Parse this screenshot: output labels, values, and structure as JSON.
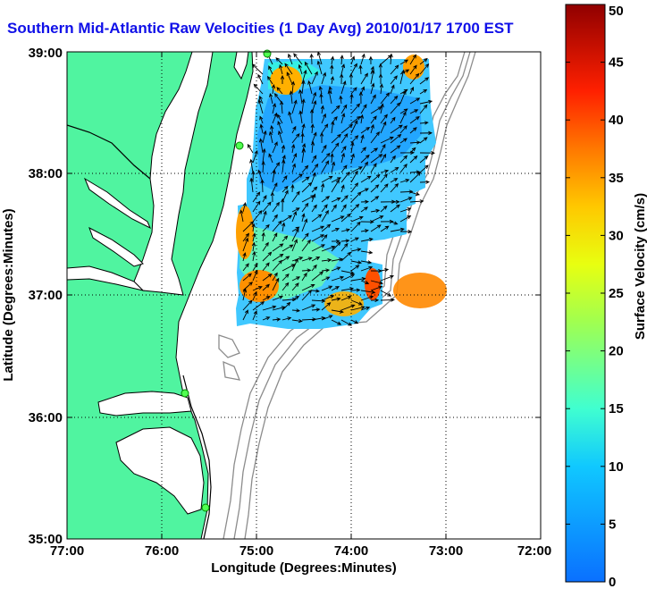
{
  "title": "Southern Mid-Atlantic Raw Velocities (1 Day Avg) 2010/01/17 1700 EST",
  "chart_data": {
    "type": "heatmap",
    "title": "Southern Mid-Atlantic Raw Velocities (1 Day Avg) 2010/01/17 1700 EST",
    "xlabel": "Longitude (Degrees:Minutes)",
    "ylabel": "Latitude (Degrees:Minutes)",
    "x_ticks": [
      "77:00",
      "76:00",
      "75:00",
      "74:00",
      "73:00",
      "72:00"
    ],
    "y_ticks": [
      "39:00",
      "38:00",
      "37:00",
      "36:00",
      "35:00"
    ],
    "xlim": [
      -77,
      -72
    ],
    "ylim": [
      35,
      39
    ],
    "grid": true,
    "colorbar": {
      "label": "Surface Velocity (cm/s)",
      "range": [
        0,
        50
      ],
      "ticks": [
        "0",
        "5",
        "10",
        "15",
        "20",
        "25",
        "30",
        "35",
        "40",
        "45",
        "50"
      ]
    },
    "field_extent": {
      "lon_min": -75.2,
      "lon_max": -72.9,
      "lat_min": 36.55,
      "lat_max": 38.93
    },
    "dominant_speed_cm_s": 10,
    "high_speed_areas": [
      {
        "lon": -75.1,
        "lat": 37.3,
        "speed": 30
      },
      {
        "lon": -74.8,
        "lat": 36.9,
        "speed": 32
      },
      {
        "lon": -74.4,
        "lat": 36.7,
        "speed": 30
      },
      {
        "lon": -73.9,
        "lat": 37.0,
        "speed": 35
      },
      {
        "lon": -74.8,
        "lat": 38.8,
        "speed": 28
      },
      {
        "lon": -73.4,
        "lat": 38.85,
        "speed": 30
      }
    ]
  }
}
